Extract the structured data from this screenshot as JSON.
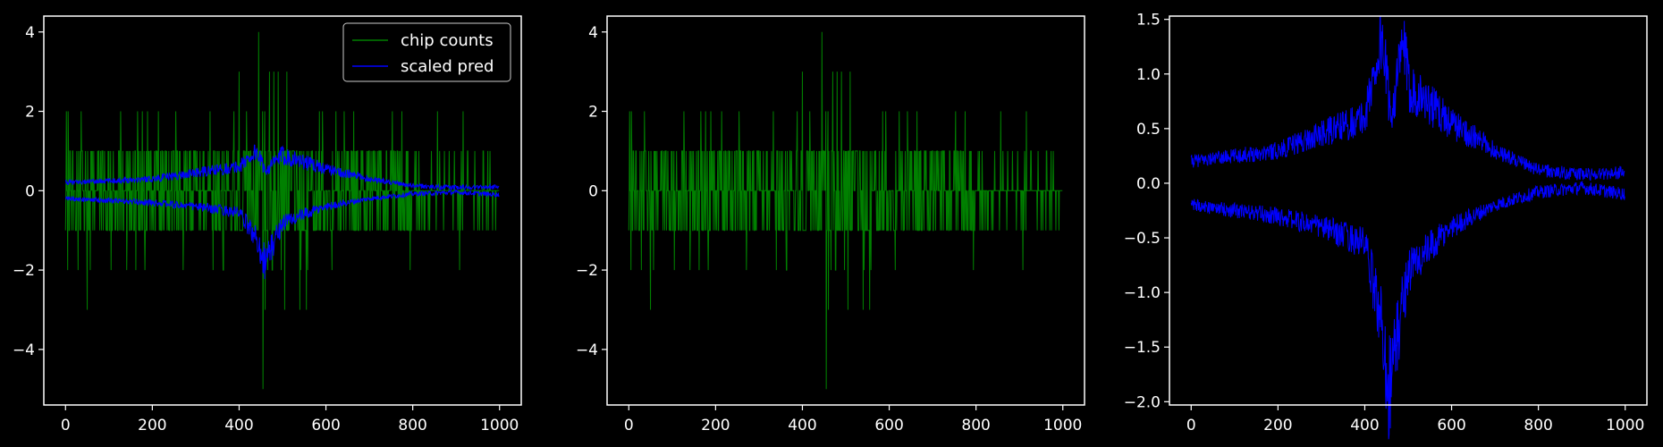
{
  "colors": {
    "background": "#000000",
    "axes": "#ffffff",
    "chip_counts": "#008000",
    "scaled_pred": "#0000ff"
  },
  "chart_data": [
    {
      "type": "line",
      "xlim": [
        -50,
        1050
      ],
      "ylim": [
        -5.4,
        4.4
      ],
      "xticks": [
        0,
        200,
        400,
        600,
        800,
        1000
      ],
      "yticks": [
        -4,
        -2,
        0,
        2,
        4
      ],
      "xtick_labels": [
        "0",
        "200",
        "400",
        "600",
        "800",
        "1000"
      ],
      "ytick_labels": [
        "−4",
        "−2",
        "0",
        "2",
        "4"
      ],
      "legend": {
        "placement": "upper right",
        "entries": [
          "chip counts",
          "scaled pred"
        ]
      },
      "series": [
        {
          "name": "chip counts",
          "color": "#008000",
          "x_range": [
            0,
            999
          ],
          "values": "integer counts per x from 0 to 999; mostly -1, 0 or 1, spikes to 2/3 and 4 near x=445, minimum -5 near x=455, sparse after x=800"
        },
        {
          "name": "scaled pred",
          "color": "#0000ff",
          "x_range": [
            0,
            999
          ],
          "upper_envelope": {
            "x": [
              0,
              100,
              200,
              300,
              400,
              440,
              460,
              500,
              600,
              700,
              800,
              900,
              1000
            ],
            "y": [
              0.2,
              0.25,
              0.3,
              0.45,
              0.6,
              1.0,
              0.5,
              0.9,
              0.55,
              0.3,
              0.12,
              0.08,
              0.1
            ]
          },
          "lower_envelope": {
            "x": [
              0,
              100,
              200,
              300,
              400,
              440,
              460,
              500,
              600,
              700,
              800,
              900,
              1000
            ],
            "y": [
              -0.2,
              -0.25,
              -0.3,
              -0.4,
              -0.55,
              -1.2,
              -1.8,
              -0.8,
              -0.4,
              -0.2,
              -0.08,
              -0.04,
              -0.1
            ]
          }
        }
      ]
    },
    {
      "type": "line",
      "xlim": [
        -50,
        1050
      ],
      "ylim": [
        -5.4,
        4.4
      ],
      "xticks": [
        0,
        200,
        400,
        600,
        800,
        1000
      ],
      "yticks": [
        -4,
        -2,
        0,
        2,
        4
      ],
      "xtick_labels": [
        "0",
        "200",
        "400",
        "600",
        "800",
        "1000"
      ],
      "ytick_labels": [
        "−4",
        "−2",
        "0",
        "2",
        "4"
      ],
      "series": [
        {
          "name": "chip counts",
          "color": "#008000",
          "x_range": [
            0,
            999
          ]
        }
      ]
    },
    {
      "type": "line",
      "xlim": [
        -50,
        1050
      ],
      "ylim": [
        -2.03,
        1.53
      ],
      "xticks": [
        0,
        200,
        400,
        600,
        800,
        1000
      ],
      "yticks": [
        -2.0,
        -1.5,
        -1.0,
        -0.5,
        0.0,
        0.5,
        1.0,
        1.5
      ],
      "xtick_labels": [
        "0",
        "200",
        "400",
        "600",
        "800",
        "1000"
      ],
      "ytick_labels": [
        "−2.0",
        "−1.5",
        "−1.0",
        "−0.5",
        "0.0",
        "0.5",
        "1.0",
        "1.5"
      ],
      "series": [
        {
          "name": "scaled pred",
          "color": "#0000ff",
          "x_range": [
            0,
            999
          ],
          "upper_envelope": {
            "x": [
              0,
              100,
              200,
              300,
              400,
              440,
              460,
              490,
              500,
              600,
              700,
              800,
              900,
              1000
            ],
            "y": [
              0.2,
              0.25,
              0.3,
              0.45,
              0.6,
              1.35,
              0.6,
              1.3,
              0.9,
              0.55,
              0.3,
              0.12,
              0.08,
              0.1
            ]
          },
          "lower_envelope": {
            "x": [
              0,
              100,
              200,
              300,
              400,
              440,
              455,
              500,
              600,
              700,
              800,
              900,
              1000
            ],
            "y": [
              -0.2,
              -0.25,
              -0.3,
              -0.4,
              -0.55,
              -1.3,
              -1.88,
              -0.8,
              -0.4,
              -0.2,
              -0.08,
              -0.04,
              -0.1
            ]
          }
        }
      ]
    }
  ]
}
